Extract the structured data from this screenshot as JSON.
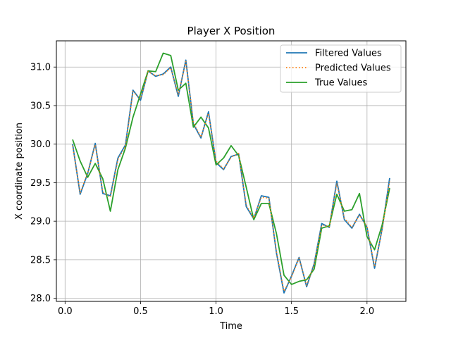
{
  "chart_data": {
    "type": "line",
    "title": "Player X Position",
    "xlabel": "Time",
    "ylabel": "X coordinate position",
    "xlim": [
      -0.0575,
      2.2575
    ],
    "ylim": [
      27.96,
      31.34
    ],
    "xticks": [
      0.0,
      0.5,
      1.0,
      1.5,
      2.0
    ],
    "xtick_labels": [
      "0.0",
      "0.5",
      "1.0",
      "1.5",
      "2.0"
    ],
    "yticks": [
      28.0,
      28.5,
      29.0,
      29.5,
      30.0,
      30.5,
      31.0
    ],
    "ytick_labels": [
      "28.0",
      "28.5",
      "29.0",
      "29.5",
      "30.0",
      "30.5",
      "31.0"
    ],
    "grid": true,
    "legend_position": "top-right",
    "x": [
      0.05,
      0.1,
      0.15,
      0.2,
      0.25,
      0.3,
      0.35,
      0.4,
      0.45,
      0.5,
      0.55,
      0.6,
      0.65,
      0.7,
      0.75,
      0.8,
      0.85,
      0.9,
      0.95,
      1.0,
      1.05,
      1.1,
      1.15,
      1.2,
      1.25,
      1.3,
      1.35,
      1.4,
      1.45,
      1.5,
      1.55,
      1.6,
      1.65,
      1.7,
      1.75,
      1.8,
      1.85,
      1.9,
      1.95,
      2.0,
      2.05,
      2.1,
      2.15
    ],
    "series": [
      {
        "name": "Filtered Values",
        "color": "#1f77b4",
        "style": "solid",
        "values": [
          30.0,
          29.35,
          29.62,
          30.01,
          29.36,
          29.33,
          29.82,
          29.99,
          30.7,
          30.57,
          30.95,
          30.88,
          30.91,
          31.0,
          30.62,
          31.09,
          30.26,
          30.08,
          30.42,
          29.76,
          29.67,
          29.84,
          29.87,
          29.19,
          29.03,
          29.33,
          29.31,
          28.59,
          28.07,
          28.29,
          28.53,
          28.15,
          28.45,
          28.97,
          28.92,
          29.52,
          29.02,
          28.91,
          29.09,
          28.92,
          28.39,
          28.9,
          29.56
        ]
      },
      {
        "name": "Predicted Values",
        "color": "#ff7f0e",
        "style": "dotted",
        "values": [
          29.98,
          29.37,
          29.63,
          29.99,
          29.38,
          29.31,
          29.8,
          29.97,
          30.68,
          30.59,
          30.94,
          30.89,
          30.9,
          30.99,
          30.64,
          31.07,
          30.28,
          30.09,
          30.4,
          29.78,
          29.68,
          29.83,
          29.88,
          29.21,
          29.04,
          29.31,
          29.3,
          28.61,
          28.09,
          28.28,
          28.52,
          28.17,
          28.44,
          28.95,
          28.93,
          29.49,
          29.04,
          28.92,
          29.08,
          28.93,
          28.41,
          28.89,
          29.52
        ]
      },
      {
        "name": "True Values",
        "color": "#2ca02c",
        "style": "solid",
        "values": [
          30.06,
          29.78,
          29.57,
          29.75,
          29.55,
          29.13,
          29.67,
          29.95,
          30.35,
          30.65,
          30.95,
          30.94,
          31.18,
          31.15,
          30.7,
          30.79,
          30.22,
          30.35,
          30.21,
          29.73,
          29.82,
          29.98,
          29.85,
          29.44,
          29.02,
          29.23,
          29.23,
          28.84,
          28.3,
          28.18,
          28.22,
          28.24,
          28.38,
          28.91,
          28.94,
          29.35,
          29.13,
          29.15,
          29.36,
          28.8,
          28.63,
          28.95,
          29.43
        ]
      }
    ]
  }
}
